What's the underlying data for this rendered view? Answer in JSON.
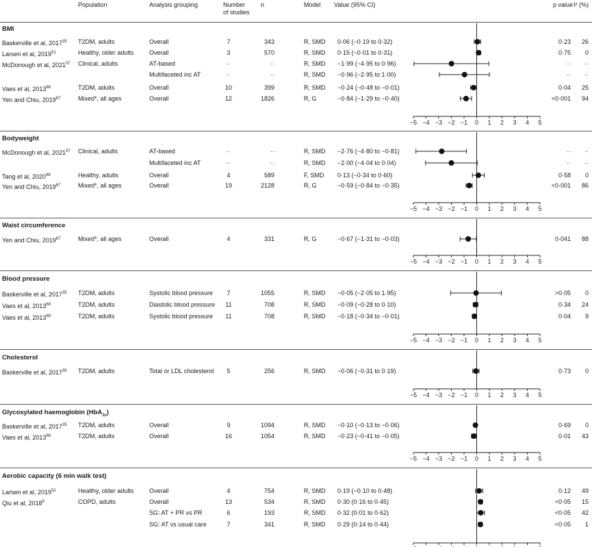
{
  "header": {
    "population": "Population",
    "analysis": "Analysis grouping",
    "studies_line1": "Number",
    "studies_line2": "of studies",
    "n": "n",
    "model": "Model",
    "value": "Value (95% CI)",
    "p": "p value",
    "i2": "I² (%)"
  },
  "axis_ticks": [
    "−5",
    "−4",
    "−3",
    "−2",
    "−1",
    "0",
    "1",
    "2",
    "3",
    "4",
    "5"
  ],
  "chart_data": {
    "type": "forest",
    "xlim": [
      -5,
      5
    ],
    "sections": [
      {
        "title": "BMI",
        "rows": [
          {
            "study": "Baskerville et al, 2017",
            "ref": "35",
            "population": "T2DM, adults",
            "analysis": "Overall",
            "studies": "7",
            "n": "343",
            "model": "R, SMD",
            "value": "0·06 (−0·19 to 0·32)",
            "est": 0.06,
            "lo": -0.19,
            "hi": 0.32,
            "p": "0·23",
            "i2": "26"
          },
          {
            "study": "Larsen et al, 2019",
            "ref": "51",
            "population": "Healthy, older adults",
            "analysis": "Overall",
            "studies": "3",
            "n": "570",
            "model": "R, SMD",
            "value": "0·15 (−0·01 to 0·31)",
            "est": 0.15,
            "lo": -0.01,
            "hi": 0.31,
            "p": "0·75",
            "i2": "0"
          },
          {
            "study": "McDonough et al, 2021",
            "ref": "57",
            "population": "Clinical, adults",
            "analysis": "AT-based",
            "studies": "··",
            "n": "··",
            "model": "R, SMD",
            "value": "−1·99 (−4·95 to 0·96)",
            "est": -1.99,
            "lo": -4.95,
            "hi": 0.96,
            "p": "··",
            "i2": "··"
          },
          {
            "study": "",
            "ref": "",
            "population": "",
            "analysis": "Multifaceted inc AT",
            "studies": "··",
            "n": "··",
            "model": "R, SMD",
            "value": "−0·96 (−2·95 to 1·00)",
            "est": -0.96,
            "lo": -2.95,
            "hi": 1.0,
            "p": "··",
            "i2": "··"
          },
          {
            "study": "Vaes et al, 2013",
            "ref": "68",
            "population": "T2DM, adults",
            "analysis": "Overall",
            "studies": "10",
            "n": "399",
            "model": "R, SMD",
            "value": "−0·24 (−0·48 to −0·01)",
            "est": -0.24,
            "lo": -0.48,
            "hi": -0.01,
            "p": "0·04",
            "i2": "25"
          },
          {
            "study": "Yen and Chiu, 2019",
            "ref": "67",
            "population": "Mixed*, all ages",
            "analysis": "Overall",
            "studies": "12",
            "n": "1826",
            "model": "R, G",
            "value": "−0·84 (−1·29 to −0·40)",
            "est": -0.84,
            "lo": -1.29,
            "hi": -0.4,
            "p": "<0·001",
            "i2": "94"
          }
        ]
      },
      {
        "title": "Bodyweight",
        "rows": [
          {
            "study": "McDonough et al, 2021",
            "ref": "57",
            "population": "Clinical, adults",
            "analysis": "AT-based",
            "studies": "··",
            "n": "··",
            "model": "R, SMD",
            "value": "−2·76 (−4·80 to −0·81)",
            "est": -2.76,
            "lo": -4.8,
            "hi": -0.81,
            "p": "··",
            "i2": "··"
          },
          {
            "study": "",
            "ref": "",
            "population": "",
            "analysis": "Multifaceted inc AT",
            "studies": "··",
            "n": "··",
            "model": "R, SMD",
            "value": "−2·00 (−4·04 to 0·04)",
            "est": -2.0,
            "lo": -4.04,
            "hi": 0.04,
            "p": "··",
            "i2": "··"
          },
          {
            "study": "Tang et al, 2020",
            "ref": "66",
            "population": "Healthy, adults",
            "analysis": "Overall",
            "studies": "4",
            "n": "589",
            "model": "F, SMD",
            "value": "0·13 (−0·34 to 0·60)",
            "est": 0.13,
            "lo": -0.34,
            "hi": 0.6,
            "p": "0·58",
            "i2": "0"
          },
          {
            "study": "Yen and Chiu, 2019",
            "ref": "67",
            "population": "Mixed*, all ages",
            "analysis": "Overall",
            "studies": "19",
            "n": "2128",
            "model": "R, G",
            "value": "−0·59 (−0·84 to −0·35)",
            "est": -0.59,
            "lo": -0.84,
            "hi": -0.35,
            "p": "<0·001",
            "i2": "86"
          }
        ]
      },
      {
        "title": "Waist circumference",
        "rows": [
          {
            "study": "Yen and Chiu, 2019",
            "ref": "67",
            "population": "Mixed*, all ages",
            "analysis": "Overall",
            "studies": "4",
            "n": "331",
            "model": "R, G",
            "value": "−0·67 (−1·31 to −0·03)",
            "est": -0.67,
            "lo": -1.31,
            "hi": -0.03,
            "p": "0·041",
            "i2": "88"
          }
        ]
      },
      {
        "title": "Blood pressure",
        "rows": [
          {
            "study": "Baskerville et al, 2017",
            "ref": "35",
            "population": "T2DM, adults",
            "analysis": "Systolic blood pressure",
            "studies": "7",
            "n": "1055",
            "model": "R, SMD",
            "value": "−0·05 (−2·05 to 1·95)",
            "est": -0.05,
            "lo": -2.05,
            "hi": 1.95,
            "p": ">0·05",
            "i2": "0"
          },
          {
            "study": "Vaes et al, 2013",
            "ref": "68",
            "population": "T2DM, adults",
            "analysis": "Diastolic blood pressure",
            "studies": "11",
            "n": "708",
            "model": "R, SMD",
            "value": "−0·09 (−0·28 to 0·10)",
            "est": -0.09,
            "lo": -0.28,
            "hi": 0.1,
            "p": "0·34",
            "i2": "24"
          },
          {
            "study": "Vaes et al, 2013",
            "ref": "68",
            "population": "T2DM, adults",
            "analysis": "Systolic blood pressure",
            "studies": "11",
            "n": "708",
            "model": "R, SMD",
            "value": "−0·18 (−0·34 to −0·01)",
            "est": -0.18,
            "lo": -0.34,
            "hi": -0.01,
            "p": "0·04",
            "i2": "9"
          }
        ]
      },
      {
        "title": "Cholesterol",
        "rows": [
          {
            "study": "Baskerville et al, 2017",
            "ref": "35",
            "population": "T2DM, adults",
            "analysis": "Total or LDL cholesterol",
            "studies": "5",
            "n": "256",
            "model": "R, SMD",
            "value": "−0·06 (−0·31 to 0·19)",
            "est": -0.06,
            "lo": -0.31,
            "hi": 0.19,
            "p": "0·73",
            "i2": "0"
          }
        ]
      },
      {
        "title": "Glycosylated haemoglobin (HbA",
        "title_sub": "1c",
        "title_end": ")",
        "rows": [
          {
            "study": "Baskerville et al, 2017",
            "ref": "35",
            "population": "T2DM, adults",
            "analysis": "Overall",
            "studies": "9",
            "n": "1094",
            "model": "R, SMD",
            "value": "−0·10 (−0·13 to −0·06)",
            "est": -0.1,
            "lo": -0.13,
            "hi": -0.06,
            "p": "0·69",
            "i2": "0"
          },
          {
            "study": "Vaes et al, 2013",
            "ref": "68",
            "population": "T2DM, adults",
            "analysis": "Overall",
            "studies": "16",
            "n": "1054",
            "model": "R, SMD",
            "value": "−0·23 (−0·41 to −0·05)",
            "est": -0.23,
            "lo": -0.41,
            "hi": -0.05,
            "p": "0·01",
            "i2": "43"
          }
        ]
      },
      {
        "title": "Aerobic capacity (6 min walk test)",
        "rows": [
          {
            "study": "Larsen et al, 2019",
            "ref": "51",
            "population": "Healthy, older adults",
            "analysis": "Overall",
            "studies": "4",
            "n": "754",
            "model": "R, SMD",
            "value": "0·19 (−0·10 to 0·48)",
            "est": 0.19,
            "lo": -0.1,
            "hi": 0.48,
            "p": "0·12",
            "i2": "49"
          },
          {
            "study": "Qiu et al, 2018",
            "ref": "9",
            "population": "COPD, adults",
            "analysis": "Overall",
            "studies": "13",
            "n": "534",
            "model": "R, SMD",
            "value": "0·30 (0·16 to 0·45)",
            "est": 0.3,
            "lo": 0.16,
            "hi": 0.45,
            "p": "<0·05",
            "i2": "15"
          },
          {
            "study": "",
            "ref": "",
            "population": "",
            "analysis": "SG: AT + PR vs PR",
            "studies": "6",
            "n": "193",
            "model": "R, SMD",
            "value": "0·32 (0·01 to 0·62)",
            "est": 0.32,
            "lo": 0.01,
            "hi": 0.62,
            "p": "<0·05",
            "i2": "42"
          },
          {
            "study": "",
            "ref": "",
            "population": "",
            "analysis": "SG: AT vs usual care",
            "studies": "7",
            "n": "341",
            "model": "R, SMD",
            "value": "0·29 (0·14 to 0·44)",
            "est": 0.29,
            "lo": 0.14,
            "hi": 0.44,
            "p": "<0·05",
            "i2": "1"
          }
        ]
      }
    ]
  }
}
